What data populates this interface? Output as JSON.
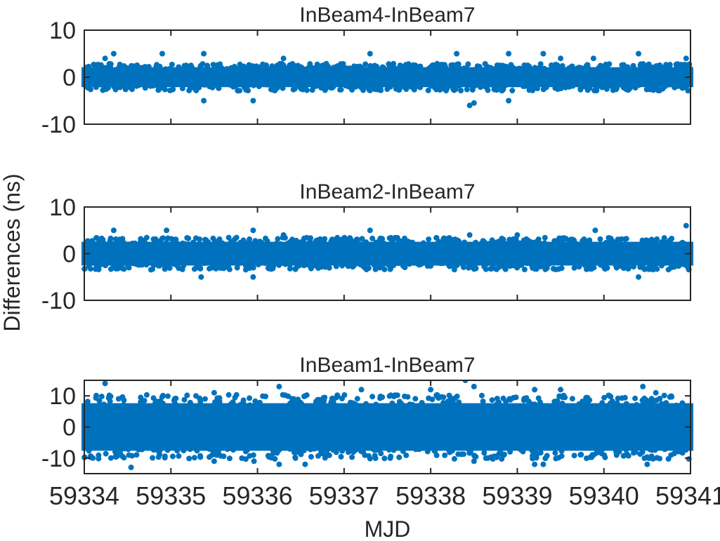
{
  "chart_data": [
    {
      "type": "scatter",
      "title": "InBeam4-InBeam7",
      "xlabel": "",
      "ylabel": "Differences (ns)",
      "xlim": [
        59334,
        59341
      ],
      "ylim": [
        -10,
        10
      ],
      "yticks": [
        -10,
        0,
        10
      ],
      "xticks": [
        59334,
        59335,
        59336,
        59337,
        59338,
        59339,
        59340,
        59341
      ],
      "color": "#0072BD",
      "band": {
        "typical_min": -2.5,
        "typical_max": 2.5
      },
      "outliers": [
        {
          "x": 59334.34,
          "y": 5
        },
        {
          "x": 59334.24,
          "y": 4
        },
        {
          "x": 59334.9,
          "y": 5
        },
        {
          "x": 59335.38,
          "y": 5
        },
        {
          "x": 59335.38,
          "y": -5
        },
        {
          "x": 59335.95,
          "y": -5
        },
        {
          "x": 59336.3,
          "y": 4
        },
        {
          "x": 59337.3,
          "y": 5
        },
        {
          "x": 59338.3,
          "y": 5
        },
        {
          "x": 59338.45,
          "y": -6
        },
        {
          "x": 59338.5,
          "y": -5.5
        },
        {
          "x": 59338.9,
          "y": 5
        },
        {
          "x": 59338.9,
          "y": -5
        },
        {
          "x": 59339.3,
          "y": 5
        },
        {
          "x": 59339.5,
          "y": 4
        },
        {
          "x": 59339.88,
          "y": 4
        },
        {
          "x": 59340.4,
          "y": 5
        },
        {
          "x": 59340.95,
          "y": 4
        }
      ]
    },
    {
      "type": "scatter",
      "title": "InBeam2-InBeam7",
      "xlabel": "",
      "ylabel": "Differences (ns)",
      "xlim": [
        59334,
        59341
      ],
      "ylim": [
        -10,
        10
      ],
      "yticks": [
        -10,
        0,
        10
      ],
      "xticks": [
        59334,
        59335,
        59336,
        59337,
        59338,
        59339,
        59340,
        59341
      ],
      "color": "#0072BD",
      "band": {
        "typical_min": -3,
        "typical_max": 3
      },
      "outliers": [
        {
          "x": 59334.34,
          "y": 5
        },
        {
          "x": 59334.95,
          "y": 5
        },
        {
          "x": 59335.35,
          "y": -5
        },
        {
          "x": 59335.95,
          "y": 5
        },
        {
          "x": 59335.95,
          "y": -5
        },
        {
          "x": 59336.3,
          "y": 4
        },
        {
          "x": 59337.3,
          "y": 5
        },
        {
          "x": 59338.45,
          "y": 4
        },
        {
          "x": 59339.0,
          "y": 4
        },
        {
          "x": 59339.9,
          "y": 5
        },
        {
          "x": 59340.4,
          "y": -5
        },
        {
          "x": 59340.95,
          "y": 6
        }
      ]
    },
    {
      "type": "scatter",
      "title": "InBeam1-InBeam7",
      "xlabel": "MJD",
      "ylabel": "Differences (ns)",
      "xlim": [
        59334,
        59341
      ],
      "ylim": [
        -15,
        15
      ],
      "yticks": [
        -10,
        0,
        10
      ],
      "xticks": [
        59334,
        59335,
        59336,
        59337,
        59338,
        59339,
        59340,
        59341
      ],
      "color": "#0072BD",
      "band": {
        "typical_min": -9,
        "typical_max": 9
      },
      "outliers": [
        {
          "x": 59334.24,
          "y": 14
        },
        {
          "x": 59334.1,
          "y": -10
        },
        {
          "x": 59334.54,
          "y": -13
        },
        {
          "x": 59335.5,
          "y": -11
        },
        {
          "x": 59335.5,
          "y": 11
        },
        {
          "x": 59335.96,
          "y": -11
        },
        {
          "x": 59336.25,
          "y": 13
        },
        {
          "x": 59336.25,
          "y": -12
        },
        {
          "x": 59336.55,
          "y": -12
        },
        {
          "x": 59336.55,
          "y": 10
        },
        {
          "x": 59337.2,
          "y": 12
        },
        {
          "x": 59338.4,
          "y": 15
        },
        {
          "x": 59338.5,
          "y": 13
        },
        {
          "x": 59338.0,
          "y": 12
        },
        {
          "x": 59338.5,
          "y": -11
        },
        {
          "x": 59339.2,
          "y": 12
        },
        {
          "x": 59339.2,
          "y": -12
        },
        {
          "x": 59339.3,
          "y": -12
        },
        {
          "x": 59339.5,
          "y": 12
        },
        {
          "x": 59340.45,
          "y": 13
        },
        {
          "x": 59340.5,
          "y": -12
        },
        {
          "x": 59340.6,
          "y": 11
        }
      ]
    }
  ],
  "figure": {
    "ylabel": "Differences (ns)",
    "xlabel": "MJD"
  }
}
